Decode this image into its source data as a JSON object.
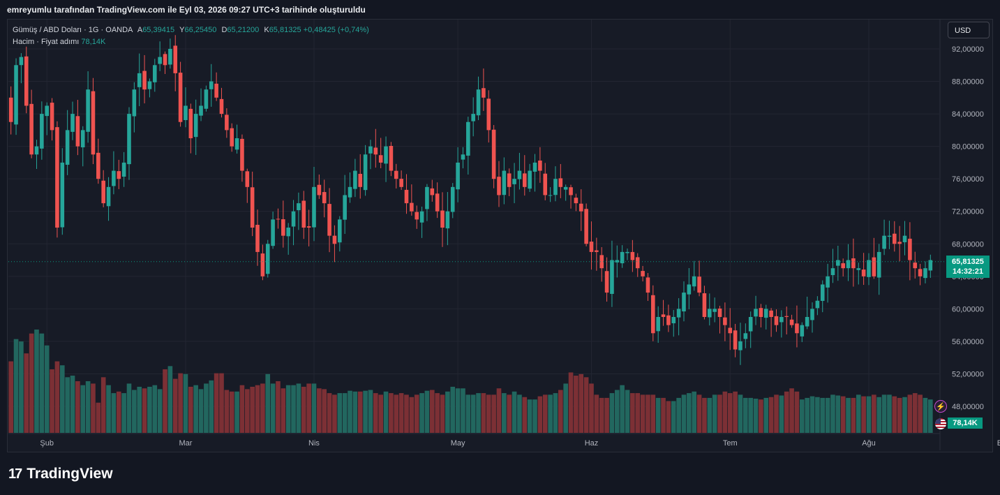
{
  "header_note": "emreyumlu tarafından TradingView.com ile Eyl 03, 2026 09:27 UTC+3 tarihinde oluşturuldu",
  "legend": {
    "symbol": "Gümüş / ABD Doları · 1G · OANDA",
    "o_label": "A",
    "o_value": "65,39415",
    "h_label": "Y",
    "h_value": "66,25450",
    "l_label": "D",
    "l_value": "65,21200",
    "c_label": "K",
    "c_value": "65,81325",
    "change": "+0,48425 (+0,74%)",
    "volume_label": "Hacim · Fiyat adımı",
    "volume_value": "78,14K"
  },
  "currency_button": "USD",
  "last_price": "65,81325",
  "countdown": "14:32:21",
  "volume_tag": "78,14K",
  "brand": "TradingView",
  "colors": {
    "up": "#26a69a",
    "down": "#ef5350",
    "up_volume": "#22675f",
    "down_volume": "#7c3035",
    "background": "#171b26",
    "grid": "#232632"
  },
  "chart_data": {
    "type": "candlestick",
    "title": "Gümüş / ABD Doları · 1G · OANDA",
    "ylim": [
      45,
      96
    ],
    "y_ticks": [
      "48,00000",
      "52,00000",
      "56,00000",
      "60,00000",
      "64,00000",
      "68,00000",
      "72,00000",
      "76,00000",
      "80,00000",
      "84,00000",
      "88,00000",
      "92,00000"
    ],
    "y_tick_values": [
      48,
      52,
      56,
      60,
      64,
      68,
      72,
      76,
      80,
      84,
      88,
      92
    ],
    "x_labels": [
      "Şub",
      "Mar",
      "Nis",
      "May",
      "Haz",
      "Tem",
      "Ağu",
      "Eyl"
    ],
    "x_label_index": [
      7,
      34,
      59,
      87,
      113,
      140,
      167,
      193
    ],
    "last_close": 65.81,
    "close": [
      83,
      90,
      91,
      85,
      79,
      80,
      84,
      85,
      82,
      70,
      78,
      82,
      84,
      80,
      82,
      87,
      79,
      76,
      73,
      75,
      77,
      76,
      78,
      84,
      87,
      89,
      87,
      88,
      90,
      91,
      90,
      92,
      89,
      83,
      85,
      81,
      84,
      85,
      87,
      88,
      86,
      84,
      82,
      80,
      81,
      77,
      75,
      70,
      67,
      64,
      68,
      71,
      71,
      69,
      70,
      72,
      73,
      70,
      70,
      75,
      74,
      73,
      69,
      68,
      71,
      74,
      75,
      77,
      75,
      79,
      80,
      79,
      78,
      80,
      77,
      76,
      75,
      73,
      72,
      71,
      72,
      75,
      74,
      72,
      70,
      72,
      75,
      78,
      79,
      83,
      84,
      87,
      86,
      82,
      76,
      74,
      77,
      75,
      76,
      77,
      75,
      77,
      78,
      77,
      74,
      74,
      76,
      75,
      75,
      74,
      73,
      72,
      68,
      67,
      67,
      65,
      62,
      66,
      66,
      67,
      67,
      66,
      65,
      64,
      62,
      57,
      59,
      59,
      58,
      59,
      60,
      62,
      63,
      64,
      62,
      59,
      60,
      60,
      59,
      58,
      57,
      55,
      56,
      57,
      59,
      60,
      59,
      60,
      59,
      58,
      59,
      59,
      58,
      57,
      58,
      59,
      60,
      61,
      63,
      64,
      65,
      66,
      65,
      66,
      65,
      65,
      64,
      66,
      64,
      67,
      69,
      69,
      68,
      68,
      69,
      66,
      65,
      64,
      65,
      66
    ],
    "volume": [
      90,
      118,
      115,
      100,
      125,
      130,
      125,
      110,
      80,
      90,
      85,
      70,
      72,
      65,
      60,
      65,
      62,
      38,
      70,
      60,
      50,
      52,
      50,
      62,
      54,
      58,
      56,
      58,
      60,
      55,
      80,
      84,
      68,
      75,
      74,
      58,
      60,
      55,
      62,
      66,
      75,
      75,
      54,
      52,
      52,
      60,
      55,
      58,
      60,
      62,
      74,
      62,
      65,
      56,
      60,
      60,
      62,
      58,
      62,
      62,
      56,
      55,
      50,
      48,
      50,
      50,
      53,
      52,
      52,
      53,
      54,
      50,
      48,
      52,
      50,
      48,
      50,
      48,
      45,
      48,
      50,
      53,
      54,
      50,
      48,
      52,
      58,
      56,
      56,
      48,
      48,
      50,
      50,
      48,
      48,
      56,
      50,
      48,
      52,
      48,
      45,
      42,
      42,
      46,
      48,
      48,
      50,
      54,
      62,
      76,
      72,
      74,
      70,
      62,
      48,
      44,
      44,
      50,
      54,
      60,
      54,
      50,
      50,
      48,
      48,
      48,
      44,
      44,
      40,
      40,
      44,
      48,
      50,
      52,
      48,
      44,
      44,
      48,
      48,
      52,
      50,
      52,
      48,
      44,
      44,
      43,
      42,
      44,
      45,
      48,
      47,
      52,
      56,
      52,
      42,
      44,
      46,
      45,
      44,
      44,
      48,
      47,
      46,
      44,
      44,
      48,
      46,
      46,
      48,
      45,
      48,
      48,
      46,
      44,
      45,
      48,
      50,
      48,
      44,
      42
    ]
  }
}
